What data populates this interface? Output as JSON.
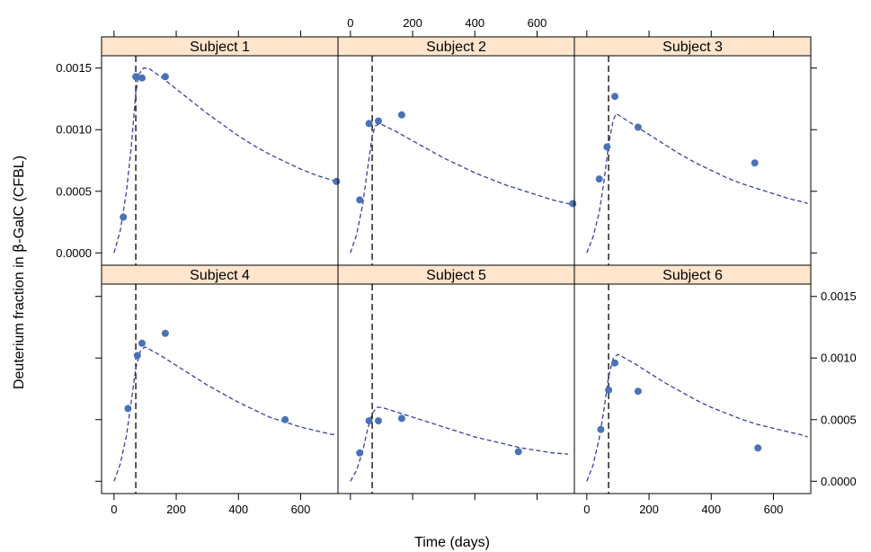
{
  "chart_data": {
    "type": "scatter",
    "title": "",
    "xlabel": "Time (days)",
    "ylabel_prefix": "Deuterium fraction in ",
    "ylabel_greek": "β",
    "ylabel_suffix": "-GalC (CFBL)",
    "xlim": [
      -40,
      720
    ],
    "ylim": [
      -0.0001,
      0.0016
    ],
    "x_ticks": [
      0,
      200,
      400,
      600
    ],
    "y_ticks": [
      0.0,
      0.0005,
      0.001,
      0.0015
    ],
    "x_tick_labels": [
      "0",
      "200",
      "400",
      "600"
    ],
    "y_tick_labels": [
      "0.0000",
      "0.0005",
      "0.0010",
      "0.0015"
    ],
    "reference_line_x": 70,
    "point_color": "#4a72b8",
    "curve_color": "#3b3fa0",
    "strip_color": "#ffe5cc",
    "grid": false,
    "panels": [
      {
        "name": "Subject 1",
        "points": [
          [
            30,
            0.00029
          ],
          [
            70,
            0.00143
          ],
          [
            90,
            0.00142
          ],
          [
            165,
            0.00143
          ],
          [
            715,
            0.00058
          ]
        ],
        "curve": [
          [
            0,
            0.0
          ],
          [
            20,
            0.00018
          ],
          [
            40,
            0.0005
          ],
          [
            55,
            0.00085
          ],
          [
            70,
            0.0013
          ],
          [
            80,
            0.00145
          ],
          [
            95,
            0.0015
          ],
          [
            110,
            0.0015
          ],
          [
            150,
            0.00143
          ],
          [
            200,
            0.00133
          ],
          [
            250,
            0.00123
          ],
          [
            300,
            0.00113
          ],
          [
            350,
            0.00104
          ],
          [
            400,
            0.00095
          ],
          [
            450,
            0.00087
          ],
          [
            500,
            0.0008
          ],
          [
            550,
            0.00074
          ],
          [
            600,
            0.00068
          ],
          [
            650,
            0.00063
          ],
          [
            700,
            0.00059
          ],
          [
            720,
            0.00058
          ]
        ]
      },
      {
        "name": "Subject 2",
        "points": [
          [
            30,
            0.00043
          ],
          [
            60,
            0.00105
          ],
          [
            90,
            0.00107
          ],
          [
            165,
            0.00112
          ],
          [
            715,
            0.0004
          ]
        ],
        "curve": [
          [
            0,
            0.0
          ],
          [
            20,
            0.00015
          ],
          [
            40,
            0.0004
          ],
          [
            55,
            0.00068
          ],
          [
            70,
            0.00095
          ],
          [
            80,
            0.00103
          ],
          [
            95,
            0.00105
          ],
          [
            150,
            0.00098
          ],
          [
            200,
            0.00091
          ],
          [
            250,
            0.00084
          ],
          [
            300,
            0.00077
          ],
          [
            350,
            0.00071
          ],
          [
            400,
            0.00065
          ],
          [
            450,
            0.0006
          ],
          [
            500,
            0.00055
          ],
          [
            550,
            0.00051
          ],
          [
            600,
            0.00047
          ],
          [
            650,
            0.00043
          ],
          [
            700,
            0.0004
          ],
          [
            715,
            0.00039
          ]
        ]
      },
      {
        "name": "Subject 3",
        "points": [
          [
            40,
            0.0006
          ],
          [
            65,
            0.00086
          ],
          [
            90,
            0.00127
          ],
          [
            165,
            0.00102
          ],
          [
            540,
            0.00073
          ]
        ],
        "curve": [
          [
            0,
            0.0
          ],
          [
            20,
            0.00013
          ],
          [
            40,
            0.00033
          ],
          [
            55,
            0.00058
          ],
          [
            70,
            0.00088
          ],
          [
            85,
            0.00108
          ],
          [
            95,
            0.00113
          ],
          [
            150,
            0.00104
          ],
          [
            200,
            0.00096
          ],
          [
            250,
            0.00088
          ],
          [
            300,
            0.0008
          ],
          [
            350,
            0.00073
          ],
          [
            400,
            0.00067
          ],
          [
            450,
            0.00061
          ],
          [
            500,
            0.00056
          ],
          [
            550,
            0.00052
          ],
          [
            600,
            0.00048
          ],
          [
            650,
            0.00044
          ],
          [
            700,
            0.00041
          ],
          [
            710,
            0.0004
          ]
        ]
      },
      {
        "name": "Subject 4",
        "points": [
          [
            45,
            0.00059
          ],
          [
            75,
            0.00102
          ],
          [
            90,
            0.00112
          ],
          [
            165,
            0.0012
          ],
          [
            550,
            0.0005
          ]
        ],
        "curve": [
          [
            0,
            0.0
          ],
          [
            20,
            0.00014
          ],
          [
            40,
            0.00037
          ],
          [
            55,
            0.00064
          ],
          [
            70,
            0.00092
          ],
          [
            85,
            0.00106
          ],
          [
            100,
            0.00109
          ],
          [
            150,
            0.00102
          ],
          [
            200,
            0.00094
          ],
          [
            250,
            0.00086
          ],
          [
            300,
            0.00078
          ],
          [
            350,
            0.00071
          ],
          [
            400,
            0.00064
          ],
          [
            450,
            0.00058
          ],
          [
            500,
            0.00052
          ],
          [
            550,
            0.00048
          ],
          [
            600,
            0.00044
          ],
          [
            650,
            0.00041
          ],
          [
            700,
            0.00038
          ],
          [
            710,
            0.00038
          ]
        ]
      },
      {
        "name": "Subject 5",
        "points": [
          [
            30,
            0.00023
          ],
          [
            60,
            0.00049
          ],
          [
            90,
            0.00049
          ],
          [
            165,
            0.00051
          ],
          [
            540,
            0.00024
          ]
        ],
        "curve": [
          [
            0,
            0.0
          ],
          [
            20,
            9e-05
          ],
          [
            40,
            0.00025
          ],
          [
            55,
            0.00042
          ],
          [
            70,
            0.00055
          ],
          [
            85,
            0.0006
          ],
          [
            100,
            0.0006
          ],
          [
            150,
            0.00056
          ],
          [
            200,
            0.00052
          ],
          [
            250,
            0.00048
          ],
          [
            300,
            0.00044
          ],
          [
            350,
            0.0004
          ],
          [
            400,
            0.00036
          ],
          [
            450,
            0.00033
          ],
          [
            500,
            0.0003
          ],
          [
            550,
            0.00027
          ],
          [
            600,
            0.00025
          ],
          [
            650,
            0.00023
          ],
          [
            700,
            0.00022
          ]
        ]
      },
      {
        "name": "Subject 6",
        "points": [
          [
            45,
            0.00042
          ],
          [
            70,
            0.00074
          ],
          [
            90,
            0.00096
          ],
          [
            165,
            0.00073
          ],
          [
            550,
            0.00027
          ]
        ],
        "curve": [
          [
            0,
            0.0
          ],
          [
            20,
            0.00013
          ],
          [
            40,
            0.00035
          ],
          [
            55,
            0.00058
          ],
          [
            70,
            0.00085
          ],
          [
            85,
            0.001
          ],
          [
            100,
            0.00103
          ],
          [
            150,
            0.00096
          ],
          [
            200,
            0.00088
          ],
          [
            250,
            0.0008
          ],
          [
            300,
            0.00073
          ],
          [
            350,
            0.00066
          ],
          [
            400,
            0.0006
          ],
          [
            450,
            0.00055
          ],
          [
            500,
            0.0005
          ],
          [
            550,
            0.00046
          ],
          [
            600,
            0.00043
          ],
          [
            650,
            0.0004
          ],
          [
            700,
            0.00037
          ],
          [
            710,
            0.00036
          ]
        ]
      }
    ]
  }
}
